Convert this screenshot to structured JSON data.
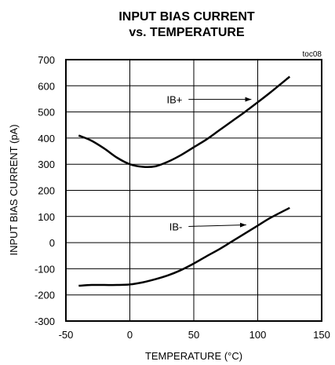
{
  "chart_data": {
    "type": "line",
    "title_line1": "INPUT BIAS CURRENT",
    "title_line2": "vs. TEMPERATURE",
    "tag": "toc08",
    "xlabel": "TEMPERATURE (°C)",
    "ylabel": "INPUT BIAS CURRENT (pA)",
    "xlim": [
      -50,
      150
    ],
    "ylim": [
      -300,
      700
    ],
    "x_ticks": [
      -50,
      0,
      50,
      100,
      150
    ],
    "x_tick_labels": [
      "-50",
      "0",
      "50",
      "100",
      "150"
    ],
    "y_ticks": [
      -300,
      -200,
      -100,
      0,
      100,
      200,
      300,
      400,
      500,
      600,
      700
    ],
    "y_tick_labels": [
      "-300",
      "-200",
      "-100",
      "0",
      "100",
      "200",
      "300",
      "400",
      "500",
      "600",
      "700"
    ],
    "grid": true,
    "series": [
      {
        "name": "IB+",
        "color": "#000000",
        "x": [
          -40,
          -30,
          -20,
          -10,
          0,
          10,
          20,
          30,
          40,
          50,
          60,
          70,
          80,
          90,
          100,
          110,
          125
        ],
        "y": [
          410,
          390,
          360,
          325,
          300,
          290,
          292,
          310,
          335,
          365,
          395,
          430,
          465,
          500,
          537,
          575,
          635
        ]
      },
      {
        "name": "IB-",
        "color": "#000000",
        "x": [
          -40,
          -30,
          -20,
          -10,
          0,
          10,
          20,
          30,
          40,
          50,
          60,
          70,
          80,
          90,
          100,
          110,
          125
        ],
        "y": [
          -165,
          -162,
          -162,
          -162,
          -160,
          -152,
          -140,
          -125,
          -105,
          -80,
          -52,
          -25,
          5,
          35,
          65,
          95,
          133
        ]
      }
    ],
    "annotations": [
      {
        "label": "IB+",
        "series": 0,
        "text_x": 41,
        "text_y": 548,
        "arrow_end_x": 95,
        "arrow_end_y": 548
      },
      {
        "label": "IB-",
        "series": 1,
        "text_x": 41,
        "text_y": 62,
        "arrow_end_x": 91,
        "arrow_end_y": 68
      }
    ]
  }
}
